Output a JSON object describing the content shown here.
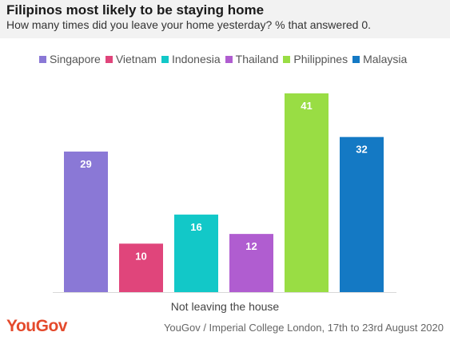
{
  "header": {
    "title": "Filipinos most likely to be staying home",
    "subtitle": "How many times did you leave your home yesterday? % that answered 0."
  },
  "footer": {
    "logo": "YouGov",
    "source": "YouGov / Imperial College London, 17th to 23rd August 2020"
  },
  "chart_data": {
    "type": "bar",
    "categories": [
      "Not leaving the house"
    ],
    "xlabel": "Not leaving the house",
    "ylim": [
      0,
      45
    ],
    "grid": false,
    "legend_position": "top",
    "series": [
      {
        "name": "Singapore",
        "values": [
          29
        ],
        "color": "#8a78d6"
      },
      {
        "name": "Vietnam",
        "values": [
          10
        ],
        "color": "#e0457b"
      },
      {
        "name": "Indonesia",
        "values": [
          16
        ],
        "color": "#12c8c8"
      },
      {
        "name": "Thailand",
        "values": [
          12
        ],
        "color": "#b05dd0"
      },
      {
        "name": "Philippines",
        "values": [
          41
        ],
        "color": "#99dd44"
      },
      {
        "name": "Malaysia",
        "values": [
          32
        ],
        "color": "#1479c4"
      }
    ]
  }
}
